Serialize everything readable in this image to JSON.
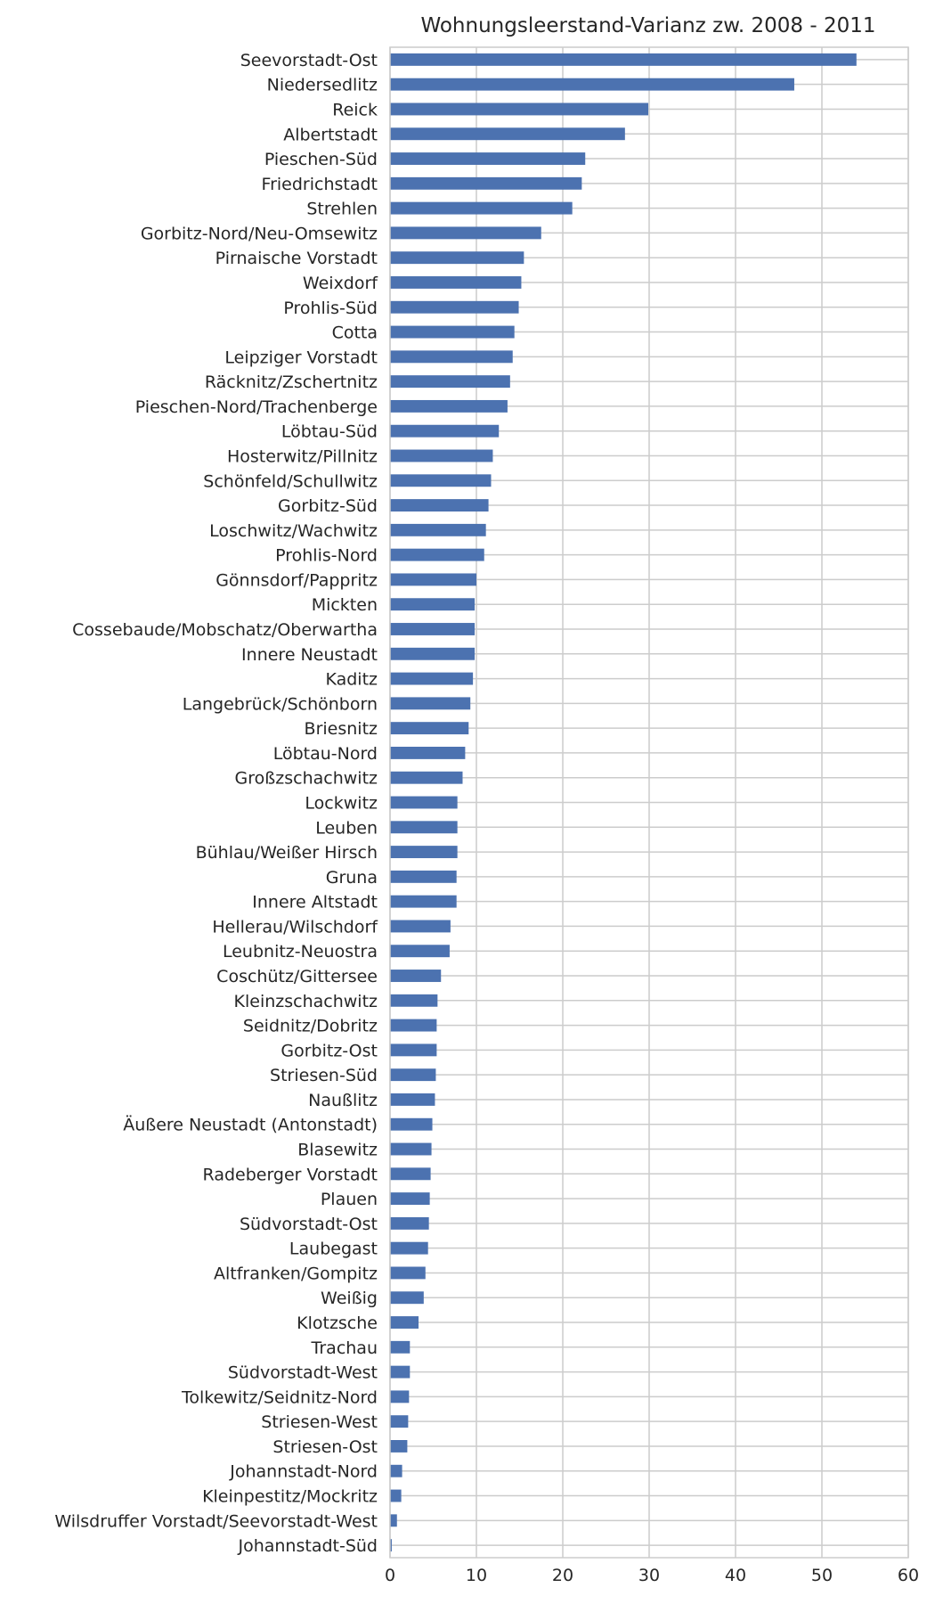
{
  "colors": {
    "bar": "#4c72b0",
    "grid": "#cccccc",
    "axis": "#cccccc",
    "text": "#262626",
    "background": "#ffffff"
  },
  "chart_data": {
    "type": "bar",
    "orientation": "horizontal",
    "title": "Wohnungsleerstand-Varianz zw. 2008 - 2011",
    "xlabel": "",
    "ylabel": "",
    "xlim": [
      0,
      60
    ],
    "xticks": [
      0,
      10,
      20,
      30,
      40,
      50,
      60
    ],
    "grid": true,
    "legend": "none",
    "categories": [
      "Seevorstadt-Ost",
      "Niedersedlitz",
      "Reick",
      "Albertstadt",
      "Pieschen-Süd",
      "Friedrichstadt",
      "Strehlen",
      "Gorbitz-Nord/Neu-Omsewitz",
      "Pirnaische Vorstadt",
      "Weixdorf",
      "Prohlis-Süd",
      "Cotta",
      "Leipziger Vorstadt",
      "Räcknitz/Zschertnitz",
      "Pieschen-Nord/Trachenberge",
      "Löbtau-Süd",
      "Hosterwitz/Pillnitz",
      "Schönfeld/Schullwitz",
      "Gorbitz-Süd",
      "Loschwitz/Wachwitz",
      "Prohlis-Nord",
      "Gönnsdorf/Pappritz",
      "Mickten",
      "Cossebaude/Mobschatz/Oberwartha",
      "Innere Neustadt",
      "Kaditz",
      "Langebrück/Schönborn",
      "Briesnitz",
      "Löbtau-Nord",
      "Großzschachwitz",
      "Lockwitz",
      "Leuben",
      "Bühlau/Weißer Hirsch",
      "Gruna",
      "Innere Altstadt",
      "Hellerau/Wilschdorf",
      "Leubnitz-Neuostra",
      "Coschütz/Gittersee",
      "Kleinzschachwitz",
      "Seidnitz/Dobritz",
      "Gorbitz-Ost",
      "Striesen-Süd",
      "Naußlitz",
      "Äußere Neustadt (Antonstadt)",
      "Blasewitz",
      "Radeberger Vorstadt",
      "Plauen",
      "Südvorstadt-Ost",
      "Laubegast",
      "Altfranken/Gompitz",
      "Weißig",
      "Klotzsche",
      "Trachau",
      "Südvorstadt-West",
      "Tolkewitz/Seidnitz-Nord",
      "Striesen-West",
      "Striesen-Ost",
      "Johannstadt-Nord",
      "Kleinpestitz/Mockritz",
      "Wilsdruffer Vorstadt/Seevorstadt-West",
      "Johannstadt-Süd"
    ],
    "values": [
      54.0,
      46.8,
      29.9,
      27.2,
      22.6,
      22.2,
      21.1,
      17.5,
      15.5,
      15.2,
      14.9,
      14.4,
      14.2,
      13.9,
      13.6,
      12.6,
      11.9,
      11.7,
      11.4,
      11.1,
      10.9,
      10.0,
      9.8,
      9.8,
      9.8,
      9.6,
      9.3,
      9.1,
      8.7,
      8.4,
      7.8,
      7.8,
      7.8,
      7.7,
      7.7,
      7.0,
      6.9,
      5.9,
      5.5,
      5.4,
      5.4,
      5.3,
      5.2,
      4.9,
      4.8,
      4.7,
      4.6,
      4.5,
      4.4,
      4.1,
      3.9,
      3.3,
      2.3,
      2.3,
      2.2,
      2.1,
      2.0,
      1.4,
      1.3,
      0.8,
      0.2
    ]
  }
}
